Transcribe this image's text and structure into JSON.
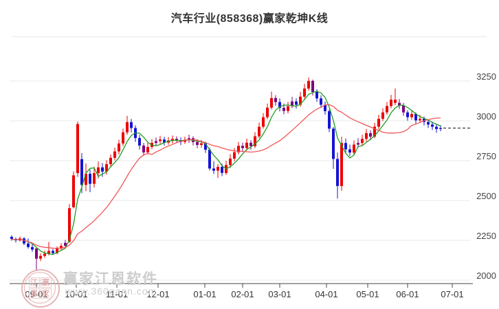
{
  "window": {
    "title": "汽车行业(858368)赢家乾坤K线"
  },
  "watermark": {
    "brand": "赢家江恩软件",
    "url": "www.360gann.com",
    "seal_chars": [
      "江",
      "赢",
      "恩",
      "家"
    ]
  },
  "colors": {
    "up": "#ee0000",
    "down": "#1414d2",
    "neutral": "#800080",
    "ma_fast": "#1e9e1e",
    "ma_slow": "#f25555",
    "grid": "#e9e9e9",
    "axis": "#444444",
    "text": "#333333",
    "last_price_line": "#111111"
  },
  "chart_data": {
    "type": "candlestick",
    "title": "汽车行业(858368)赢家乾坤K线",
    "ylim": [
      1980,
      3320
    ],
    "y_ticks": [
      3250,
      3000,
      2750,
      2500,
      2250,
      2000
    ],
    "x_tick_labels": [
      "09-01",
      "10-01",
      "11-01",
      "12-01",
      "01-01",
      "02-01",
      "03-01",
      "04-01",
      "05-01",
      "06-01",
      "07-01"
    ],
    "x_tick_pos": [
      53,
      111,
      170,
      230,
      298,
      353,
      407,
      475,
      535,
      593,
      658
    ],
    "grid": true,
    "last_price": 2955,
    "ma": [
      {
        "name": "fast",
        "period": 5,
        "color_key": "ma_fast"
      },
      {
        "name": "slow",
        "period": 18,
        "color_key": "ma_slow"
      }
    ],
    "candles": [
      [
        2272,
        2282,
        2248,
        2258,
        "b"
      ],
      [
        2258,
        2268,
        2236,
        2250,
        "b"
      ],
      [
        2250,
        2274,
        2242,
        2262,
        "r"
      ],
      [
        2262,
        2270,
        2220,
        2230,
        "b"
      ],
      [
        2230,
        2262,
        2198,
        2208,
        "b"
      ],
      [
        2208,
        2232,
        2178,
        2192,
        "b"
      ],
      [
        2198,
        2205,
        2060,
        2135,
        "p"
      ],
      [
        2135,
        2168,
        2120,
        2152,
        "r"
      ],
      [
        2152,
        2186,
        2140,
        2166,
        "r"
      ],
      [
        2166,
        2240,
        2155,
        2184,
        "r"
      ],
      [
        2184,
        2196,
        2158,
        2170,
        "b"
      ],
      [
        2170,
        2212,
        2162,
        2198,
        "r"
      ],
      [
        2198,
        2232,
        2188,
        2216,
        "r"
      ],
      [
        2216,
        2252,
        2205,
        2234,
        "p"
      ],
      [
        2242,
        2478,
        2234,
        2452,
        "r"
      ],
      [
        2458,
        2682,
        2450,
        2658,
        "r"
      ],
      [
        2672,
        2995,
        2648,
        2980,
        "r"
      ],
      [
        2760,
        2798,
        2545,
        2598,
        "b"
      ],
      [
        2598,
        2732,
        2558,
        2668,
        "r"
      ],
      [
        2668,
        2695,
        2552,
        2605,
        "b"
      ],
      [
        2605,
        2712,
        2582,
        2672,
        "r"
      ],
      [
        2672,
        2745,
        2638,
        2708,
        "r"
      ],
      [
        2708,
        2735,
        2648,
        2682,
        "b"
      ],
      [
        2682,
        2752,
        2662,
        2728,
        "r"
      ],
      [
        2728,
        2790,
        2712,
        2768,
        "r"
      ],
      [
        2768,
        2832,
        2752,
        2808,
        "r"
      ],
      [
        2808,
        2882,
        2790,
        2858,
        "r"
      ],
      [
        2858,
        2952,
        2842,
        2928,
        "r"
      ],
      [
        2928,
        3032,
        2912,
        2992,
        "r"
      ],
      [
        2992,
        3012,
        2928,
        2955,
        "b"
      ],
      [
        2955,
        2972,
        2868,
        2892,
        "b"
      ],
      [
        2892,
        2912,
        2820,
        2845,
        "b"
      ],
      [
        2845,
        2862,
        2780,
        2802,
        "p"
      ],
      [
        2802,
        2862,
        2790,
        2836,
        "r"
      ],
      [
        2836,
        2886,
        2822,
        2862,
        "r"
      ],
      [
        2862,
        2896,
        2844,
        2873,
        "p"
      ],
      [
        2873,
        2906,
        2856,
        2883,
        "r"
      ],
      [
        2883,
        2900,
        2845,
        2864,
        "b"
      ],
      [
        2864,
        2898,
        2850,
        2877,
        "r"
      ],
      [
        2877,
        2908,
        2858,
        2887,
        "r"
      ],
      [
        2887,
        2903,
        2861,
        2879,
        "p"
      ],
      [
        2879,
        2896,
        2848,
        2868,
        "b"
      ],
      [
        2868,
        2901,
        2855,
        2882,
        "r"
      ],
      [
        2882,
        2913,
        2862,
        2891,
        "p"
      ],
      [
        2891,
        2903,
        2846,
        2867,
        "p"
      ],
      [
        2867,
        2885,
        2828,
        2849,
        "p"
      ],
      [
        2849,
        2881,
        2832,
        2859,
        "r"
      ],
      [
        2859,
        2869,
        2799,
        2819,
        "b"
      ],
      [
        2819,
        2831,
        2688,
        2701,
        "b"
      ],
      [
        2701,
        2747,
        2667,
        2687,
        "b"
      ],
      [
        2687,
        2729,
        2641,
        2711,
        "r"
      ],
      [
        2711,
        2731,
        2653,
        2673,
        "b"
      ],
      [
        2673,
        2749,
        2661,
        2723,
        "r"
      ],
      [
        2723,
        2791,
        2705,
        2763,
        "r"
      ],
      [
        2763,
        2829,
        2747,
        2803,
        "r"
      ],
      [
        2803,
        2867,
        2789,
        2843,
        "r"
      ],
      [
        2843,
        2863,
        2807,
        2829,
        "p"
      ],
      [
        2829,
        2889,
        2813,
        2863,
        "r"
      ],
      [
        2863,
        2879,
        2819,
        2841,
        "p"
      ],
      [
        2841,
        2929,
        2829,
        2903,
        "r"
      ],
      [
        2903,
        2989,
        2891,
        2963,
        "r"
      ],
      [
        2963,
        3049,
        2951,
        3023,
        "r"
      ],
      [
        3023,
        3109,
        3011,
        3083,
        "r"
      ],
      [
        3083,
        3183,
        3071,
        3143,
        "r"
      ],
      [
        3143,
        3161,
        3095,
        3118,
        "p"
      ],
      [
        3118,
        3141,
        3059,
        3082,
        "b"
      ],
      [
        3082,
        3109,
        3041,
        3062,
        "p"
      ],
      [
        3062,
        3119,
        3047,
        3092,
        "r"
      ],
      [
        3092,
        3151,
        3079,
        3122,
        "p"
      ],
      [
        3122,
        3141,
        3077,
        3101,
        "b"
      ],
      [
        3101,
        3181,
        3089,
        3152,
        "r"
      ],
      [
        3152,
        3233,
        3139,
        3203,
        "r"
      ],
      [
        3203,
        3272,
        3189,
        3251,
        "r"
      ],
      [
        3251,
        3259,
        3159,
        3181,
        "p"
      ],
      [
        3181,
        3199,
        3119,
        3141,
        "b"
      ],
      [
        3141,
        3161,
        3081,
        3101,
        "b"
      ],
      [
        3101,
        3121,
        3039,
        3061,
        "b"
      ],
      [
        3061,
        3071,
        2929,
        2951,
        "b"
      ],
      [
        2951,
        2961,
        2699,
        2761,
        "b"
      ],
      [
        2761,
        2801,
        2512,
        2591,
        "b"
      ],
      [
        2591,
        2901,
        2561,
        2861,
        "r"
      ],
      [
        2861,
        2889,
        2797,
        2821,
        "b"
      ],
      [
        2821,
        2851,
        2779,
        2801,
        "b"
      ],
      [
        2801,
        2877,
        2787,
        2851,
        "r"
      ],
      [
        2851,
        2891,
        2831,
        2861,
        "p"
      ],
      [
        2861,
        2913,
        2845,
        2887,
        "r"
      ],
      [
        2887,
        2949,
        2869,
        2923,
        "r"
      ],
      [
        2923,
        2941,
        2879,
        2901,
        "p"
      ],
      [
        2901,
        2987,
        2891,
        2963,
        "r"
      ],
      [
        2963,
        3039,
        2949,
        3013,
        "r"
      ],
      [
        3013,
        3079,
        2999,
        3053,
        "r"
      ],
      [
        3053,
        3119,
        3039,
        3093,
        "r"
      ],
      [
        3093,
        3163,
        3079,
        3133,
        "r"
      ],
      [
        3133,
        3203,
        3099,
        3113,
        "r"
      ],
      [
        3113,
        3137,
        3075,
        3097,
        "p"
      ],
      [
        3097,
        3113,
        3031,
        3053,
        "p"
      ],
      [
        3053,
        3067,
        3001,
        3023,
        "b"
      ],
      [
        3023,
        3065,
        3007,
        3043,
        "r"
      ],
      [
        3043,
        3053,
        2981,
        3003,
        "b"
      ],
      [
        3003,
        3037,
        2987,
        3013,
        "r"
      ],
      [
        3013,
        3027,
        2971,
        2993,
        "b"
      ],
      [
        2993,
        3009,
        2955,
        2977,
        "b"
      ],
      [
        2977,
        2995,
        2943,
        2963,
        "b"
      ],
      [
        2963,
        2979,
        2925,
        2949,
        "b"
      ],
      [
        2949,
        2973,
        2935,
        2955,
        "b"
      ]
    ]
  }
}
